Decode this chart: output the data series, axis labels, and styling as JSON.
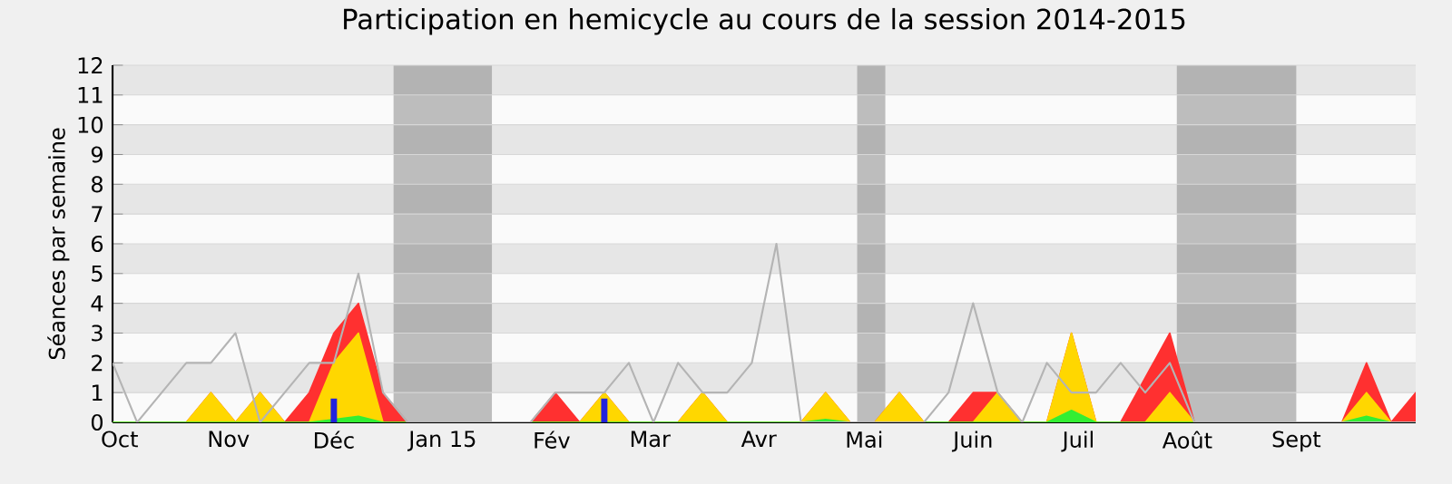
{
  "chart_data": {
    "type": "area",
    "title": "Participation en hemicycle au cours de la session 2014-2015",
    "ylabel": "Séances par semaine",
    "x": [
      "2014-09-29",
      "2014-10-06",
      "2014-10-13",
      "2014-10-20",
      "2014-10-27",
      "2014-11-03",
      "2014-11-10",
      "2014-11-17",
      "2014-11-24",
      "2014-12-01",
      "2014-12-08",
      "2014-12-15",
      "2014-12-22",
      "2014-12-29",
      "2015-01-05",
      "2015-01-12",
      "2015-01-19",
      "2015-01-26",
      "2015-02-02",
      "2015-02-09",
      "2015-02-16",
      "2015-02-23",
      "2015-03-02",
      "2015-03-09",
      "2015-03-16",
      "2015-03-23",
      "2015-03-30",
      "2015-04-06",
      "2015-04-13",
      "2015-04-20",
      "2015-04-27",
      "2015-05-04",
      "2015-05-11",
      "2015-05-18",
      "2015-05-25",
      "2015-06-01",
      "2015-06-08",
      "2015-06-15",
      "2015-06-22",
      "2015-06-29",
      "2015-07-06",
      "2015-07-13",
      "2015-07-20",
      "2015-07-27",
      "2015-08-03",
      "2015-08-10",
      "2015-08-17",
      "2015-08-24",
      "2015-08-31",
      "2015-09-07",
      "2015-09-14",
      "2015-09-21",
      "2015-09-28",
      "2015-10-05"
    ],
    "xlim": [
      "2014-09-29",
      "2015-10-05"
    ],
    "ylim": [
      0,
      12
    ],
    "xticks": [
      {
        "value": "2014-10-01",
        "label": "Oct"
      },
      {
        "value": "2014-11-01",
        "label": "Nov"
      },
      {
        "value": "2014-12-01",
        "label": "Déc"
      },
      {
        "value": "2015-01-01",
        "label": "Jan 15"
      },
      {
        "value": "2015-02-01",
        "label": "Fév"
      },
      {
        "value": "2015-03-01",
        "label": "Mar"
      },
      {
        "value": "2015-04-01",
        "label": "Avr"
      },
      {
        "value": "2015-05-01",
        "label": "Mai"
      },
      {
        "value": "2015-06-01",
        "label": "Juin"
      },
      {
        "value": "2015-07-01",
        "label": "Juil"
      },
      {
        "value": "2015-08-01",
        "label": "Août"
      },
      {
        "value": "2015-09-01",
        "label": "Sept"
      }
    ],
    "yticks": [
      0,
      1,
      2,
      3,
      4,
      5,
      6,
      7,
      8,
      9,
      10,
      11,
      12
    ],
    "grid": "y",
    "bands": [
      {
        "axis": "x",
        "from": "2014-12-18",
        "to": "2015-01-15",
        "color": "#7f7f7f"
      },
      {
        "axis": "x",
        "from": "2015-04-29",
        "to": "2015-05-07",
        "color": "#7f7f7f"
      },
      {
        "axis": "x",
        "from": "2015-07-29",
        "to": "2015-09-01",
        "color": "#7f7f7f"
      }
    ],
    "series": [
      {
        "color": "#ff3030",
        "values": [
          0,
          0,
          0,
          0,
          1,
          0,
          1,
          0,
          1,
          3,
          4,
          1,
          0,
          0,
          0,
          0,
          0,
          0,
          1,
          0,
          1,
          0,
          0,
          0,
          1,
          0,
          0,
          0,
          0,
          1,
          0,
          0,
          1,
          0,
          0,
          1,
          1,
          0,
          0,
          3,
          0,
          0,
          1.5,
          3,
          0,
          0,
          0,
          0,
          0,
          0,
          0,
          2,
          0,
          1
        ]
      },
      {
        "color": "#ffd700",
        "values": [
          0,
          0,
          0,
          0,
          1,
          0,
          1,
          0,
          0,
          2,
          3,
          0,
          0,
          0,
          0,
          0,
          0,
          0,
          0,
          0,
          1,
          0,
          0,
          0,
          1,
          0,
          0,
          0,
          0,
          1,
          0,
          0,
          1,
          0,
          0,
          0,
          1,
          0,
          0,
          3,
          0,
          0,
          0,
          1,
          0,
          0,
          0,
          0,
          0,
          0,
          0,
          1,
          0,
          0
        ]
      },
      {
        "color": "#33ee33",
        "values": [
          0,
          0,
          0,
          0,
          0,
          0,
          0,
          0,
          0,
          0.1,
          0.2,
          0,
          0,
          0,
          0,
          0,
          0,
          0,
          0,
          0,
          0,
          0,
          0,
          0,
          0,
          0,
          0,
          0,
          0,
          0.1,
          0,
          0,
          0,
          0,
          0,
          0,
          0,
          0,
          0,
          0.4,
          0,
          0,
          0,
          0,
          0,
          0,
          0,
          0,
          0,
          0,
          0,
          0.2,
          0,
          0
        ]
      },
      {
        "type": "line",
        "color": "#b4b4b4",
        "values": [
          2,
          0,
          1,
          2,
          2,
          3,
          0,
          1,
          2,
          2,
          5,
          1,
          0,
          0,
          0,
          0,
          0,
          0,
          1,
          1,
          1,
          2,
          0,
          2,
          1,
          1,
          2,
          6,
          0,
          0,
          0,
          0,
          0,
          0,
          1,
          4,
          1,
          0,
          2,
          1,
          1,
          2,
          1,
          2,
          0,
          0,
          0,
          0,
          0,
          0,
          0,
          0,
          0,
          0
        ]
      },
      {
        "type": "bar",
        "color": "#2222dd",
        "values": [
          null,
          null,
          null,
          null,
          null,
          null,
          null,
          null,
          null,
          0.8,
          null,
          null,
          null,
          null,
          null,
          null,
          null,
          null,
          null,
          null,
          0.8,
          null,
          null,
          null,
          null,
          null,
          null,
          null,
          null,
          null,
          null,
          null,
          null,
          null,
          null,
          null,
          null,
          null,
          null,
          null,
          null,
          null,
          null,
          null,
          null,
          null,
          null,
          null,
          null,
          null,
          null,
          null,
          null,
          null
        ]
      }
    ]
  }
}
